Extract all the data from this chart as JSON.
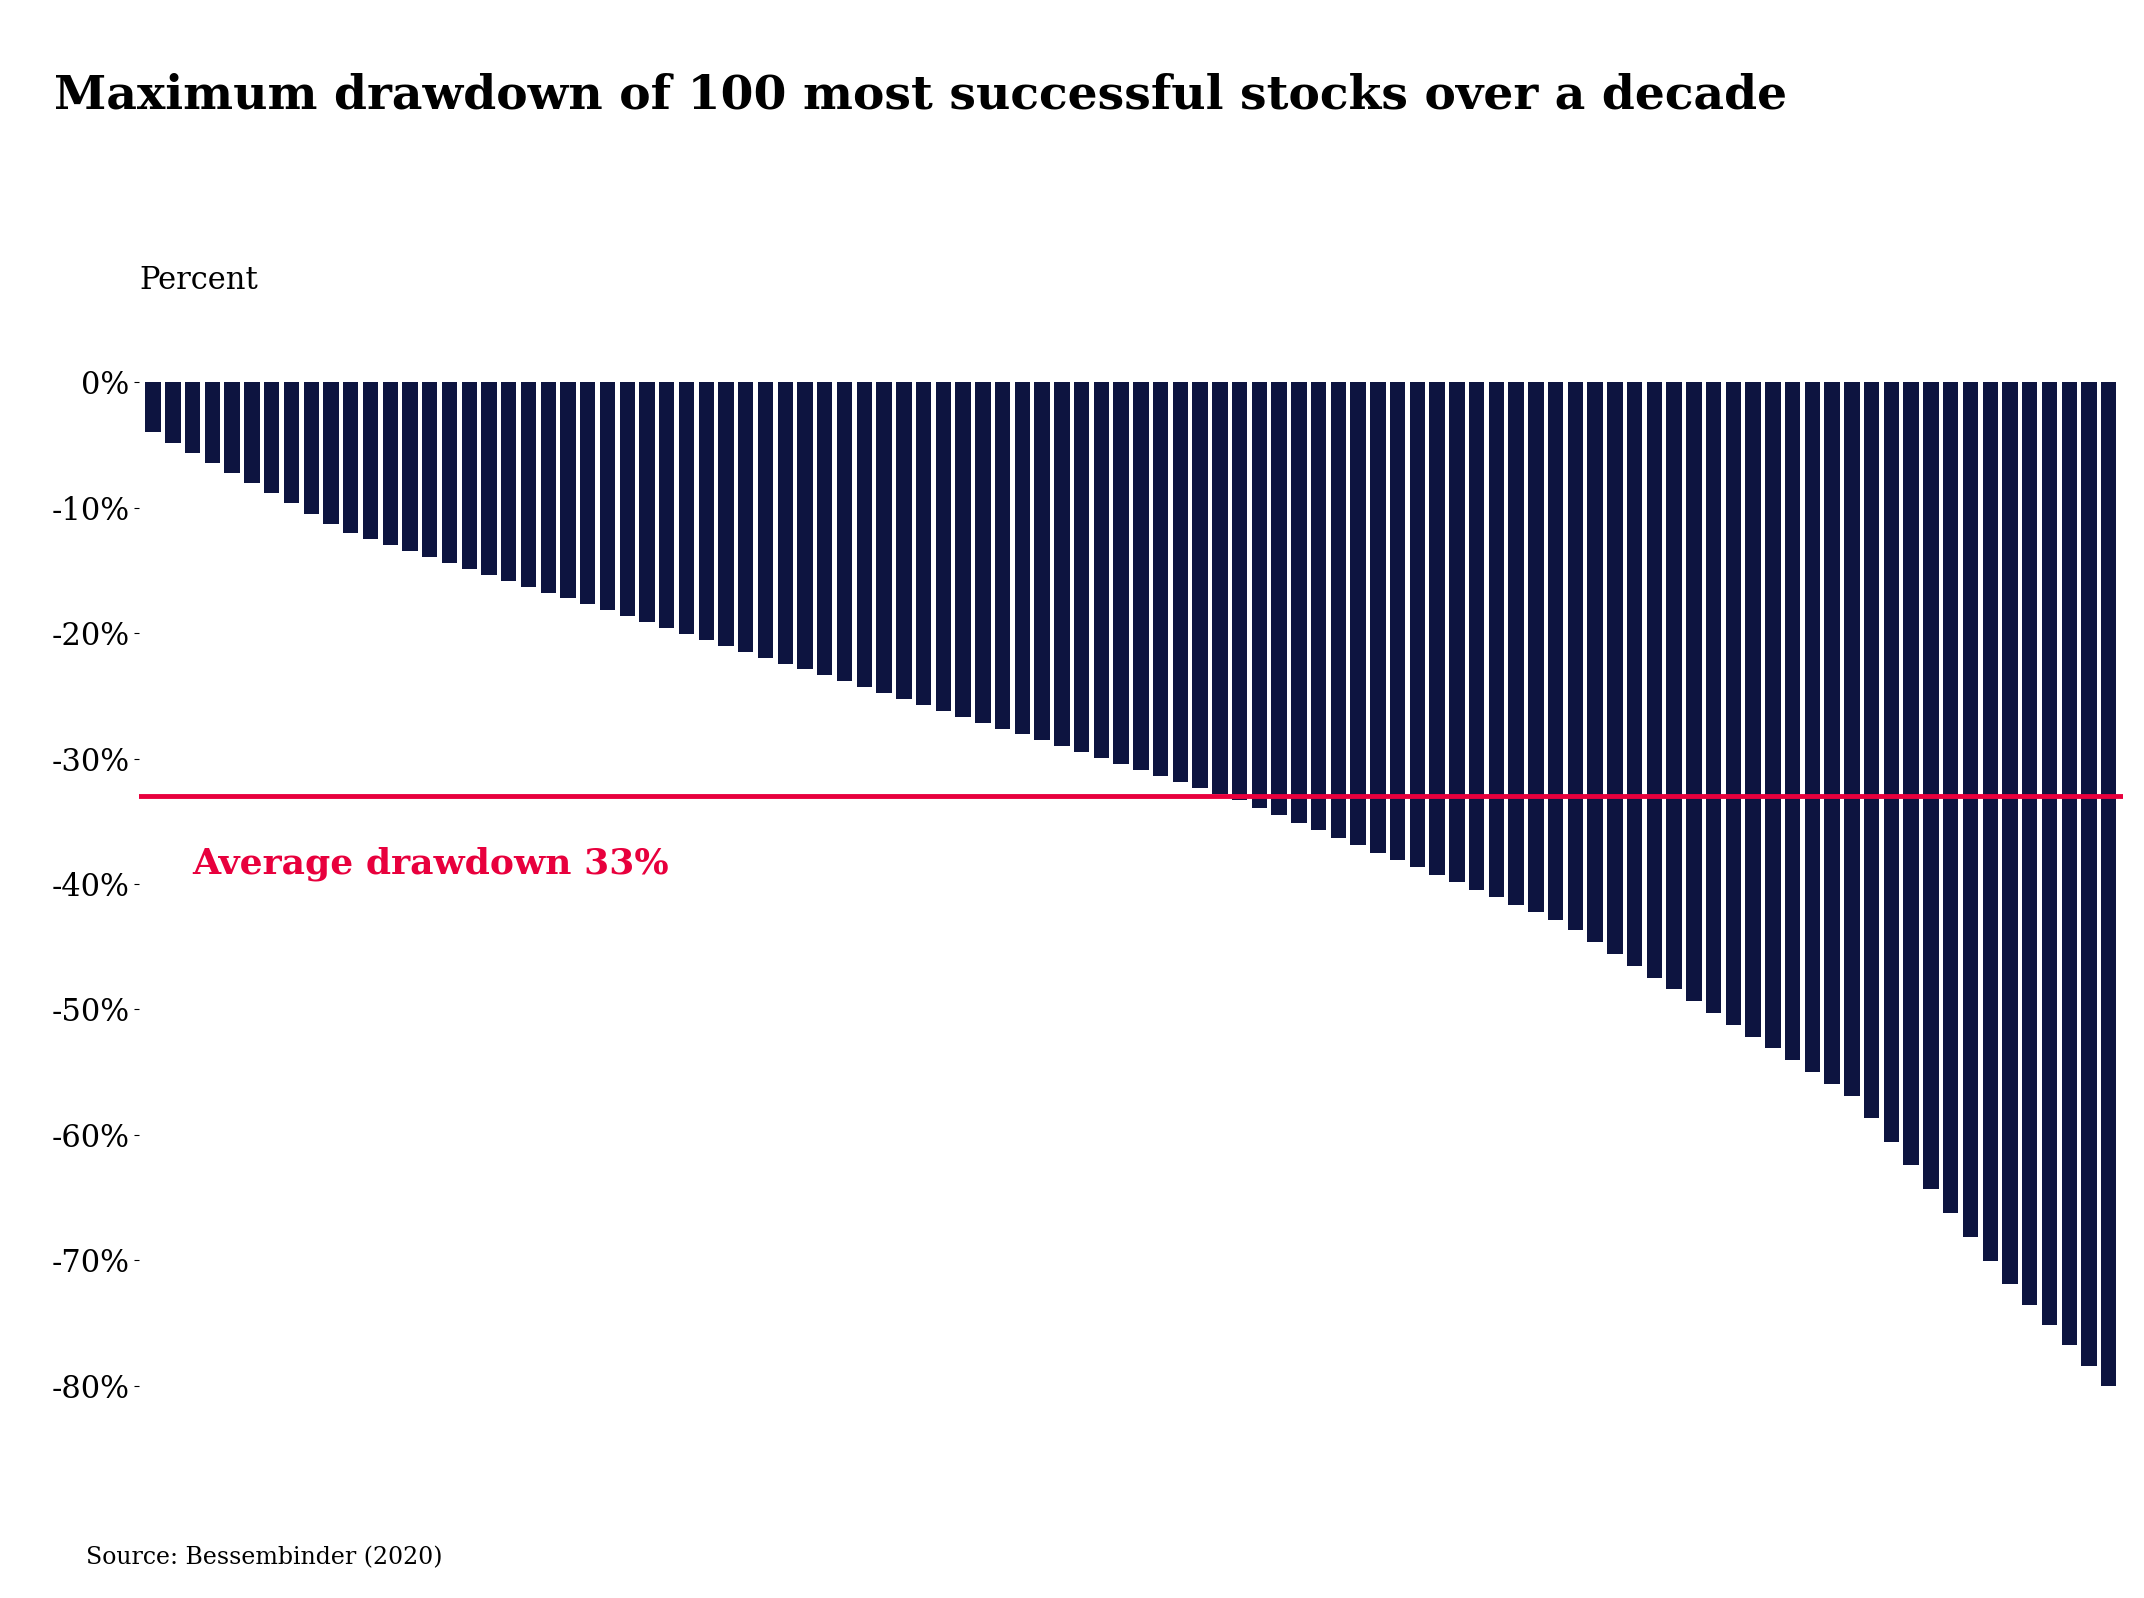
{
  "title": "Maximum drawdown of 100 most successful stocks over a decade",
  "ylabel": "Percent",
  "source": "Source: Bessembinder (2020)",
  "average_drawdown": -33,
  "average_label": "Average drawdown 33%",
  "bar_color": "#0d1440",
  "avg_line_color": "#e8003d",
  "avg_label_color": "#e8003d",
  "title_bg_color": "#d4d4d4",
  "title_fontsize": 34,
  "ylabel_fontsize": 22,
  "source_fontsize": 17,
  "avg_label_fontsize": 26,
  "ytick_fontsize": 22,
  "ylim": [
    -88,
    5
  ],
  "yticks": [
    0,
    -10,
    -20,
    -30,
    -40,
    -50,
    -60,
    -70,
    -80
  ],
  "ytick_labels": [
    "0%",
    "-10%",
    "-20%",
    "-30%",
    "-40%",
    "-50%",
    "-60%",
    "-70%",
    "-80%"
  ]
}
